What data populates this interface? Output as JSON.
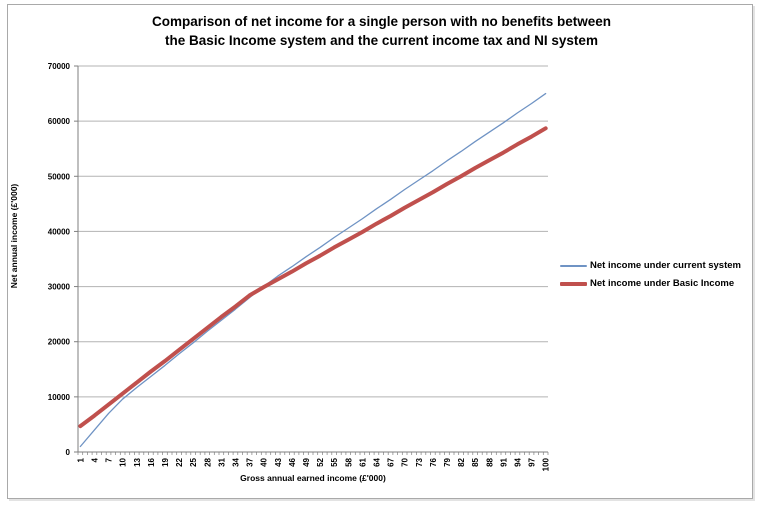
{
  "frame": {
    "border_color": "#a9a9a9",
    "background": "#ffffff"
  },
  "chart_data": {
    "type": "line",
    "title_line1": "Comparison of net income for a single person with no benefits between",
    "title_line2": "the Basic Income system and the current income tax and NI system",
    "xlabel": "Gross annual earned income (£'000)",
    "ylabel": "Net annual income (£'000)",
    "ylim": [
      0,
      70000
    ],
    "ytick_step": 10000,
    "grid": "horizontal-only",
    "legend_position": "right",
    "axis_color": "#7f7f7f",
    "gridline_color": "#b3b3b3",
    "categories": [
      1,
      4,
      7,
      10,
      13,
      16,
      19,
      22,
      25,
      28,
      31,
      34,
      37,
      40,
      43,
      46,
      49,
      52,
      55,
      58,
      61,
      64,
      67,
      70,
      73,
      76,
      79,
      82,
      85,
      88,
      91,
      94,
      97,
      100
    ],
    "x_slots": 100,
    "series": [
      {
        "name": "Net income under current system",
        "color": "#6f93c4",
        "stroke_width": 1.3,
        "values": [
          1000,
          4000,
          7000,
          9600,
          11700,
          13700,
          15700,
          17800,
          19800,
          21900,
          23900,
          25900,
          28000,
          30000,
          31900,
          33600,
          35400,
          37100,
          38900,
          40600,
          42300,
          44100,
          45800,
          47600,
          49300,
          51000,
          52800,
          54500,
          56300,
          58000,
          59700,
          61500,
          63200,
          65000
        ]
      },
      {
        "name": "Net income under Basic Income",
        "color": "#c0504d",
        "stroke_width": 4,
        "values": [
          4700,
          6600,
          8600,
          10600,
          12600,
          14600,
          16500,
          18500,
          20500,
          22500,
          24500,
          26400,
          28400,
          29900,
          31300,
          32700,
          34200,
          35600,
          37100,
          38500,
          39900,
          41400,
          42800,
          44300,
          45700,
          47100,
          48600,
          50000,
          51500,
          52900,
          54300,
          55800,
          57200,
          58700
        ]
      }
    ]
  }
}
